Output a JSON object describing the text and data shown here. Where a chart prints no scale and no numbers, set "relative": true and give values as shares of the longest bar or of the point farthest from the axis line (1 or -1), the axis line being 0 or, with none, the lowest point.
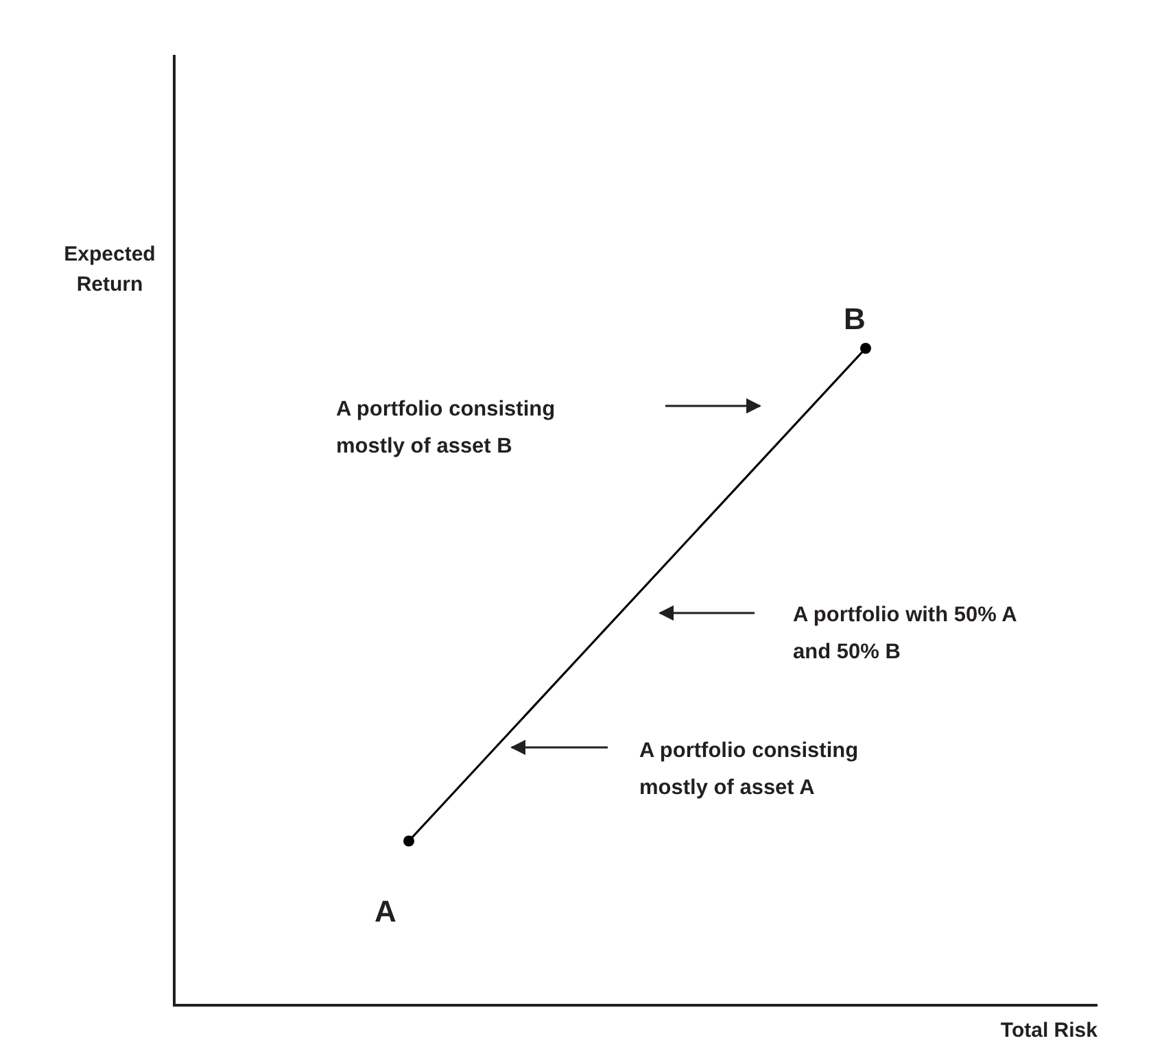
{
  "chart_data": {
    "type": "line",
    "relative": true,
    "xlabel": "Total Risk",
    "ylabel": "Expected Return",
    "marker": "circle",
    "line_style": "solid",
    "categories": [
      null,
      null
    ],
    "series": [
      {
        "color": "#000000",
        "values": [
          0.25,
          1
        ]
      }
    ],
    "annotations": [
      "B",
      "A",
      "A portfolio consisting mostly of asset B",
      "A portfolio with 50% A and 50% B",
      "A portfolio consisting mostly of asset A"
    ]
  }
}
